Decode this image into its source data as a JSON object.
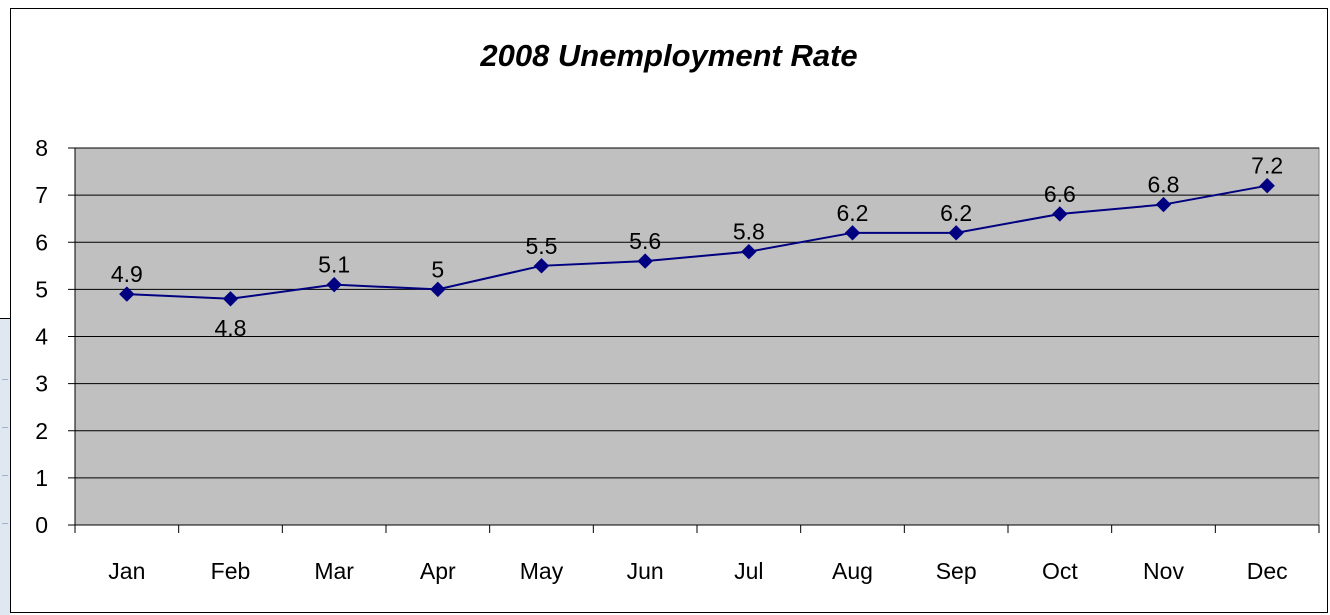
{
  "chart_data": {
    "type": "line",
    "title": "2008 Unemployment Rate",
    "categories": [
      "Jan",
      "Feb",
      "Mar",
      "Apr",
      "May",
      "Jun",
      "Jul",
      "Aug",
      "Sep",
      "Oct",
      "Nov",
      "Dec"
    ],
    "series": [
      {
        "values": [
          4.9,
          4.8,
          5.1,
          5.0,
          5.5,
          5.6,
          5.8,
          6.2,
          6.2,
          6.6,
          6.8,
          7.2
        ]
      }
    ],
    "data_labels": [
      "4.9",
      "4.8",
      "5.1",
      "5",
      "5.5",
      "5.6",
      "5.8",
      "6.2",
      "6.2",
      "6.6",
      "6.8",
      "7.2"
    ],
    "ylim": [
      0,
      8
    ],
    "yticks": [
      "0",
      "1",
      "2",
      "3",
      "4",
      "5",
      "6",
      "7",
      "8"
    ],
    "grid": true,
    "colors": {
      "line": "#000080",
      "marker": "#000080",
      "plot_bg": "#c0c0c0",
      "grid": "#000000"
    }
  }
}
